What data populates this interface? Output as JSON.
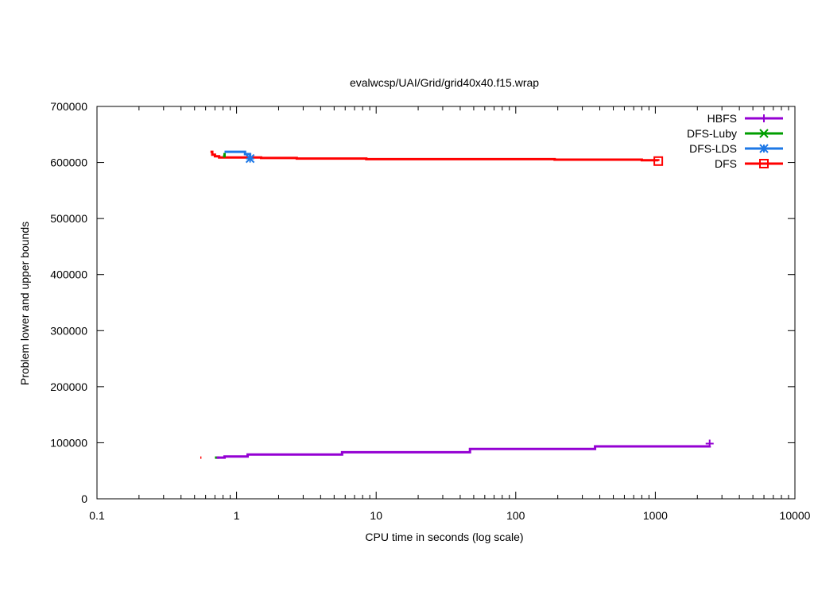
{
  "chart_data": {
    "type": "line",
    "title": "evalwcsp/UAI/Grid/grid40x40.f15.wrap",
    "xlabel": "CPU time in seconds (log scale)",
    "ylabel": "Problem lower and upper bounds",
    "xscale": "log",
    "xlim": [
      0.1,
      10000
    ],
    "ylim": [
      0,
      700000
    ],
    "grid": false,
    "legend_position": "top-right",
    "x_ticks": [
      {
        "value": 0.1,
        "label": "0.1"
      },
      {
        "value": 1,
        "label": "1"
      },
      {
        "value": 10,
        "label": "10"
      },
      {
        "value": 100,
        "label": "100"
      },
      {
        "value": 1000,
        "label": "1000"
      },
      {
        "value": 10000,
        "label": "10000"
      }
    ],
    "y_ticks": [
      {
        "value": 0,
        "label": "0"
      },
      {
        "value": 100000,
        "label": "100000"
      },
      {
        "value": 200000,
        "label": "200000"
      },
      {
        "value": 300000,
        "label": "300000"
      },
      {
        "value": 400000,
        "label": "400000"
      },
      {
        "value": 500000,
        "label": "500000"
      },
      {
        "value": 600000,
        "label": "600000"
      },
      {
        "value": 700000,
        "label": "700000"
      }
    ],
    "series": [
      {
        "name": "HBFS",
        "color": "#9400d3",
        "marker": "plus",
        "lower": [
          [
            0.72,
            73500
          ],
          [
            0.82,
            75500
          ],
          [
            1.2,
            79000
          ],
          [
            5.7,
            83000
          ],
          [
            47,
            89000
          ],
          [
            370,
            93500
          ],
          [
            2450,
            94500
          ]
        ],
        "upper": [],
        "end_marker": [
          2450,
          98500
        ]
      },
      {
        "name": "DFS-Luby",
        "color": "#009e00",
        "marker": "x",
        "lower": [
          [
            0.7,
            73500
          ],
          [
            0.75,
            73500
          ]
        ],
        "upper": [
          [
            0.8,
            611000
          ],
          [
            0.82,
            617000
          ]
        ],
        "end_marker": null
      },
      {
        "name": "DFS-LDS",
        "color": "#1e78e6",
        "marker": "asterisk",
        "lower": [],
        "upper": [
          [
            0.82,
            619000
          ],
          [
            1.15,
            619000
          ],
          [
            1.15,
            615000
          ],
          [
            1.25,
            615000
          ],
          [
            1.25,
            608000
          ]
        ],
        "end_marker": [
          1.25,
          607000
        ]
      },
      {
        "name": "DFS",
        "color": "#ff0000",
        "marker": "square",
        "lower": [
          [
            0.55,
            73500
          ],
          [
            0.56,
            73500
          ]
        ],
        "upper": [
          [
            0.65,
            619000
          ],
          [
            0.67,
            614000
          ],
          [
            0.7,
            611000
          ],
          [
            0.75,
            609000
          ],
          [
            1.5,
            608000
          ],
          [
            2.7,
            607000
          ],
          [
            8.5,
            606000
          ],
          [
            190,
            605000
          ],
          [
            800,
            604000
          ],
          [
            1050,
            602500
          ]
        ],
        "end_marker": [
          1050,
          602500
        ]
      }
    ]
  }
}
